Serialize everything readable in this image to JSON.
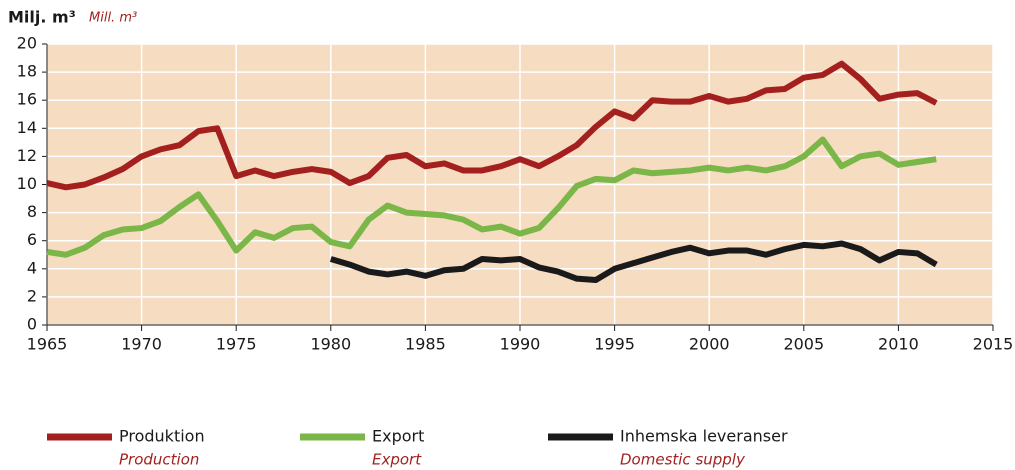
{
  "chart_data": {
    "type": "line",
    "y_label": "Milj. m³",
    "y_label_en": "Mill. m³",
    "x": [
      1965,
      1966,
      1967,
      1968,
      1969,
      1970,
      1971,
      1972,
      1973,
      1974,
      1975,
      1976,
      1977,
      1978,
      1979,
      1980,
      1981,
      1982,
      1983,
      1984,
      1985,
      1986,
      1987,
      1988,
      1989,
      1990,
      1991,
      1992,
      1993,
      1994,
      1995,
      1996,
      1997,
      1998,
      1999,
      2000,
      2001,
      2002,
      2003,
      2004,
      2005,
      2006,
      2007,
      2008,
      2009,
      2010,
      2011,
      2012
    ],
    "series": [
      {
        "name": "Produktion",
        "name_en": "Production",
        "color": "#a3201f",
        "values": [
          10.1,
          9.8,
          10.0,
          10.5,
          11.1,
          12.0,
          12.5,
          12.8,
          13.8,
          14.0,
          10.6,
          11.0,
          10.6,
          10.9,
          11.1,
          10.9,
          10.1,
          10.6,
          11.9,
          12.1,
          11.3,
          11.5,
          11.0,
          11.0,
          11.3,
          11.8,
          11.3,
          12.0,
          12.8,
          14.1,
          15.2,
          14.7,
          16.0,
          15.9,
          15.9,
          16.3,
          15.9,
          16.1,
          16.7,
          16.8,
          17.6,
          17.8,
          18.6,
          17.5,
          16.1,
          16.4,
          16.5,
          15.8
        ]
      },
      {
        "name": "Export",
        "name_en": "Export",
        "color": "#7ab648",
        "values": [
          5.2,
          5.0,
          5.5,
          6.4,
          6.8,
          6.9,
          7.4,
          8.4,
          9.3,
          7.4,
          5.3,
          6.6,
          6.2,
          6.9,
          7.0,
          5.9,
          5.6,
          7.5,
          8.5,
          8.0,
          7.9,
          7.8,
          7.5,
          6.8,
          7.0,
          6.5,
          6.9,
          8.3,
          9.9,
          10.4,
          10.3,
          11.0,
          10.8,
          10.9,
          11.0,
          11.2,
          11.0,
          11.2,
          11.0,
          11.3,
          12.0,
          13.2,
          11.3,
          12.0,
          12.2,
          11.4,
          11.6,
          11.8
        ]
      },
      {
        "name": "Inhemska leveranser",
        "name_en": "Domestic supply",
        "color": "#1a1a1a",
        "values": [
          null,
          null,
          null,
          null,
          null,
          null,
          null,
          null,
          null,
          null,
          null,
          null,
          null,
          null,
          null,
          4.7,
          4.3,
          3.8,
          3.6,
          3.8,
          3.5,
          3.9,
          4.0,
          4.7,
          4.6,
          4.7,
          4.1,
          3.8,
          3.3,
          3.2,
          4.0,
          4.4,
          4.8,
          5.2,
          5.5,
          5.1,
          5.3,
          5.3,
          5.0,
          5.4,
          5.7,
          5.6,
          5.8,
          5.4,
          4.6,
          5.2,
          5.1,
          4.3
        ]
      }
    ],
    "xlim": [
      1965,
      2015
    ],
    "xticks": [
      1965,
      1970,
      1975,
      1980,
      1985,
      1990,
      1995,
      2000,
      2005,
      2010,
      2015
    ],
    "ylim": [
      0,
      20
    ],
    "yticks": [
      0,
      2,
      4,
      6,
      8,
      10,
      12,
      14,
      16,
      18,
      20
    ],
    "grid": true,
    "background": "#f6dcc0"
  }
}
